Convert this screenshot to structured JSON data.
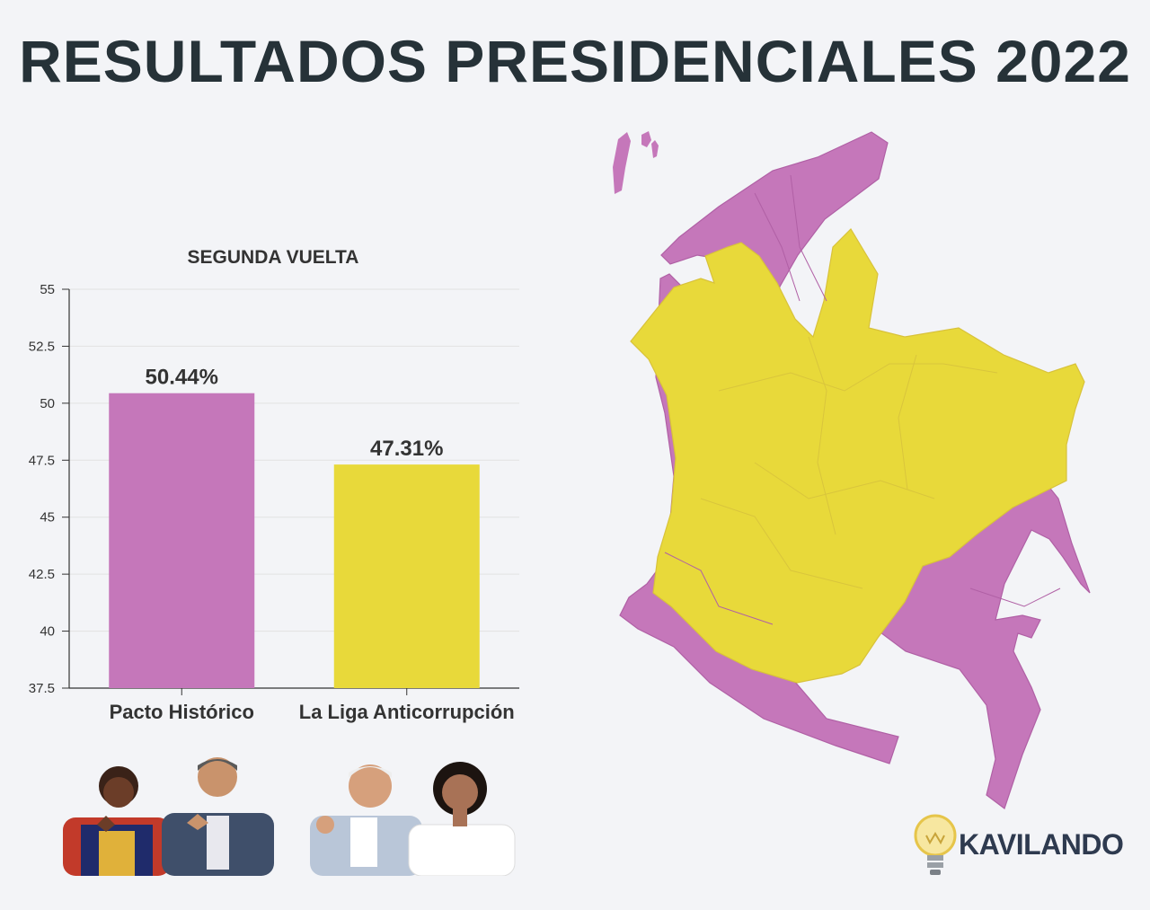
{
  "header": {
    "title": "RESULTADOS PRESIDENCIALES 2022"
  },
  "chart_data": {
    "type": "bar",
    "title": "SEGUNDA VUELTA",
    "categories": [
      "Pacto Histórico",
      "La Liga Anticorrupción"
    ],
    "values": [
      50.44,
      47.31
    ],
    "value_labels": [
      "50.44%",
      "47.31%"
    ],
    "colors": [
      "#c577ba",
      "#e8d93a"
    ],
    "ylim": [
      37.5,
      55
    ],
    "yticks": [
      "37.5",
      "40",
      "42.5",
      "45",
      "47.5",
      "50",
      "52.5",
      "55"
    ],
    "grid": true
  },
  "map": {
    "colors": {
      "pacto_historico": "#c577ba",
      "liga_anticorrupcion": "#e8d93a",
      "border": "#b060a5"
    }
  },
  "candidates": [
    {
      "party": "Pacto Histórico",
      "icon": "candidates-photo"
    },
    {
      "party": "La Liga Anticorrupción",
      "icon": "candidates-photo"
    }
  ],
  "brand": {
    "logo_text": "KAVILANDO",
    "icon": "lightbulb-icon"
  }
}
